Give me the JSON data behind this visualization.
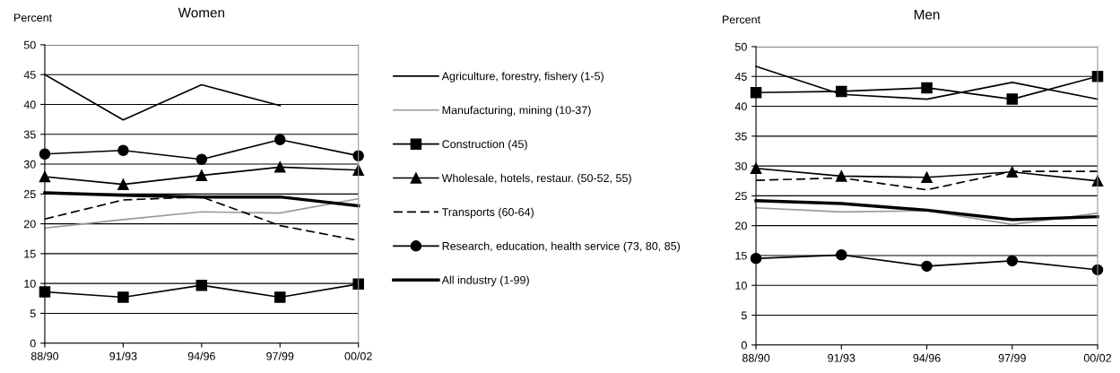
{
  "chart_data": [
    {
      "type": "line",
      "title": "Women",
      "ylabel": "Percent",
      "categories": [
        "88/90",
        "91/93",
        "94/96",
        "97/99",
        "00/02"
      ],
      "ylim": [
        0,
        50
      ],
      "yticks": [
        0,
        5,
        10,
        15,
        20,
        25,
        30,
        35,
        40,
        45,
        50
      ],
      "grid": "y",
      "legend": "right",
      "series": [
        {
          "name": "Agriculture, forestry, fishery (1-5)",
          "color": "#000000",
          "marker": "none",
          "line_style": "solid",
          "values": [
            45,
            37.4,
            43.3,
            39.8,
            null
          ]
        },
        {
          "name": "Manufacturing, mining (10-37)",
          "color": "#999999",
          "marker": "none",
          "line_style": "solid",
          "values": [
            19.3,
            20.7,
            22,
            21.8,
            24.2
          ]
        },
        {
          "name": "Construction (45)",
          "color": "#000000",
          "marker": "square",
          "line_style": "solid",
          "values": [
            8.6,
            7.7,
            9.7,
            7.7,
            9.9
          ]
        },
        {
          "name": "Wholesale, hotels, restaur. (50-52, 55)",
          "color": "#000000",
          "marker": "triangle",
          "line_style": "solid",
          "values": [
            27.9,
            26.6,
            28.1,
            29.5,
            29.0
          ]
        },
        {
          "name": "Transports (60-64)",
          "color": "#000000",
          "marker": "none",
          "line_style": "dashed",
          "values": [
            20.8,
            24.0,
            24.5,
            19.7,
            17.2
          ]
        },
        {
          "name": "Research, education, health service (73, 80, 85)",
          "color": "#000000",
          "marker": "circle",
          "line_style": "solid",
          "values": [
            31.7,
            32.3,
            30.8,
            34.1,
            31.4
          ]
        },
        {
          "name": "All industry (1-99)",
          "color": "#000000",
          "marker": "none",
          "line_style": "solid",
          "values": [
            25.2,
            24.8,
            24.5,
            24.5,
            23.0
          ]
        }
      ]
    },
    {
      "type": "line",
      "title": "Men",
      "ylabel": "Percent",
      "categories": [
        "88/90",
        "91/93",
        "94/96",
        "97/99",
        "00/02"
      ],
      "ylim": [
        0,
        50
      ],
      "yticks": [
        0,
        5,
        10,
        15,
        20,
        25,
        30,
        35,
        40,
        45,
        50
      ],
      "grid": "y",
      "series": [
        {
          "color": "#000000",
          "marker": "none",
          "line_style": "solid",
          "values": [
            46.7,
            42.0,
            41.2,
            44.0,
            41.2
          ]
        },
        {
          "color": "#999999",
          "marker": "none",
          "line_style": "solid",
          "values": [
            23.0,
            22.3,
            22.5,
            20.2,
            22.1
          ]
        },
        {
          "color": "#000000",
          "marker": "square",
          "line_style": "solid",
          "values": [
            42.3,
            42.5,
            43.1,
            41.2,
            45.0
          ]
        },
        {
          "color": "#000000",
          "marker": "triangle",
          "line_style": "solid",
          "values": [
            29.6,
            28.3,
            28.1,
            29.0,
            27.5
          ]
        },
        {
          "color": "#000000",
          "marker": "none",
          "line_style": "dashed",
          "values": [
            27.6,
            28.0,
            26.0,
            29.1,
            29.1
          ]
        },
        {
          "color": "#000000",
          "marker": "circle",
          "line_style": "solid",
          "values": [
            14.5,
            15.1,
            13.2,
            14.1,
            12.6
          ]
        },
        {
          "color": "#000000",
          "marker": "none",
          "line_style": "solid",
          "values": [
            24.2,
            23.7,
            22.6,
            21.0,
            21.5
          ]
        }
      ]
    }
  ]
}
